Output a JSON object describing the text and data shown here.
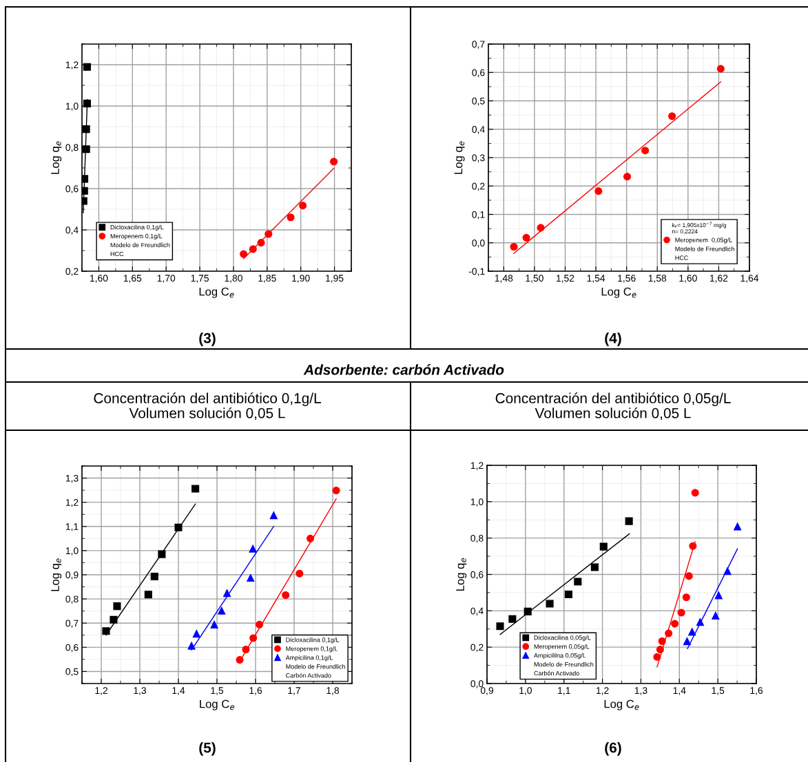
{
  "chart_data": [
    {
      "type": "scatter",
      "xlabel": "Log C$_{e}$",
      "ylabel": "Log q$_{e}$",
      "xlim": [
        1.575,
        1.975
      ],
      "ylim": [
        0.2,
        1.3
      ],
      "xticks": [
        {
          "value": 1.6,
          "label": "1,60"
        },
        {
          "value": 1.65,
          "label": "1,65"
        },
        {
          "value": 1.7,
          "label": "1,70"
        },
        {
          "value": 1.75,
          "label": "1,75"
        },
        {
          "value": 1.8,
          "label": "1,80"
        },
        {
          "value": 1.85,
          "label": "1,85"
        },
        {
          "value": 1.9,
          "label": "1,90"
        },
        {
          "value": 1.95,
          "label": "1,95"
        }
      ],
      "yticks": [
        {
          "value": 0.2,
          "label": "0,2"
        },
        {
          "value": 0.4,
          "label": "0,4"
        },
        {
          "value": 0.6,
          "label": "0,6"
        },
        {
          "value": 0.8,
          "label": "0,8"
        },
        {
          "value": 1.0,
          "label": "1,0"
        },
        {
          "value": 1.2,
          "label": "1,2"
        }
      ],
      "grid": true,
      "legend": "lower left",
      "series": [
        {
          "name": "Dicloxacilina 0,1g/L",
          "color": "#000000",
          "marker": "square",
          "x": [
            1.5773,
            1.5783,
            1.5786,
            1.5813,
            1.5813,
            1.5826,
            1.5826
          ],
          "values": [
            0.54,
            0.589,
            0.647,
            0.791,
            0.888,
            1.012,
            1.189
          ]
        },
        {
          "type": "line",
          "color": "#000000",
          "x": [
            1.5769,
            1.583
          ],
          "values": [
            0.483,
            1.031
          ]
        },
        {
          "name": "Meropenem 0,1g/L",
          "color": "#ff0000",
          "marker": "circle",
          "x": [
            1.815,
            1.829,
            1.841,
            1.852,
            1.885,
            1.903,
            1.949
          ],
          "values": [
            0.283,
            0.307,
            0.338,
            0.38,
            0.461,
            0.518,
            0.731
          ]
        },
        {
          "type": "line",
          "color": "#ff0000",
          "x": [
            1.815,
            1.949
          ],
          "values": [
            0.261,
            0.698
          ]
        }
      ],
      "annotations": [
        "(3)",
        "Modelo de Freundlich",
        "HCC"
      ]
    },
    {
      "type": "scatter",
      "xlabel": "Log C$_{e}$",
      "ylabel": "Log q$_{e}$",
      "xlim": [
        1.47,
        1.64
      ],
      "ylim": [
        -0.1,
        0.7
      ],
      "xticks": [
        {
          "value": 1.48,
          "label": "1,48"
        },
        {
          "value": 1.5,
          "label": "1,50"
        },
        {
          "value": 1.52,
          "label": "1,52"
        },
        {
          "value": 1.54,
          "label": "1,54"
        },
        {
          "value": 1.56,
          "label": "1,56"
        },
        {
          "value": 1.58,
          "label": "1,58"
        },
        {
          "value": 1.6,
          "label": "1,60"
        },
        {
          "value": 1.62,
          "label": "1,62"
        },
        {
          "value": 1.64,
          "label": "1,64"
        }
      ],
      "yticks": [
        {
          "value": -0.1,
          "label": "-0,1"
        },
        {
          "value": 0.0,
          "label": "0,0"
        },
        {
          "value": 0.1,
          "label": "0,1"
        },
        {
          "value": 0.2,
          "label": "0,2"
        },
        {
          "value": 0.3,
          "label": "0,3"
        },
        {
          "value": 0.4,
          "label": "0,4"
        },
        {
          "value": 0.5,
          "label": "0,5"
        },
        {
          "value": 0.6,
          "label": "0,6"
        },
        {
          "value": 0.7,
          "label": "0,7"
        }
      ],
      "grid": true,
      "legend": "lower right",
      "legend_title": "k$_{F}$= 1,905x10$^{−7}$ mg/g\nn= 0,2224",
      "series": [
        {
          "name": "Meropenem  0,05g/L",
          "color": "#ff0000",
          "marker": "circle",
          "x": [
            1.4866,
            1.4947,
            1.5041,
            1.5417,
            1.5604,
            1.5721,
            1.5896,
            1.6213
          ],
          "values": [
            -0.014,
            0.018,
            0.053,
            0.182,
            0.233,
            0.325,
            0.446,
            0.613
          ]
        },
        {
          "type": "line",
          "color": "#ff0000",
          "x": [
            1.4866,
            1.6213
          ],
          "values": [
            -0.037,
            0.567
          ]
        }
      ],
      "annotations": [
        "(4)",
        "Modelo de Freundlich",
        "HCC"
      ]
    },
    {
      "type": "scatter",
      "title": "Adsorbente: carbón Activado",
      "subtitle": "Concentración del antibiótico 0,1g/L\nVolumen solución 0,05 L",
      "xlabel": "Log C$_{e}$",
      "ylabel": "Log q$_{e}$",
      "xlim": [
        1.15,
        1.85
      ],
      "ylim": [
        0.45,
        1.35
      ],
      "xticks": [
        {
          "value": 1.2,
          "label": "1,2"
        },
        {
          "value": 1.3,
          "label": "1,3"
        },
        {
          "value": 1.4,
          "label": "1,4"
        },
        {
          "value": 1.5,
          "label": "1,5"
        },
        {
          "value": 1.6,
          "label": "1,6"
        },
        {
          "value": 1.7,
          "label": "1,7"
        },
        {
          "value": 1.8,
          "label": "1,8"
        }
      ],
      "yticks": [
        {
          "value": 0.5,
          "label": "0,5"
        },
        {
          "value": 0.6,
          "label": "0,6"
        },
        {
          "value": 0.7,
          "label": "0,7"
        },
        {
          "value": 0.8,
          "label": "0,8"
        },
        {
          "value": 0.9,
          "label": "0,9"
        },
        {
          "value": 1.0,
          "label": "1,0"
        },
        {
          "value": 1.1,
          "label": "1,1"
        },
        {
          "value": 1.2,
          "label": "1,2"
        },
        {
          "value": 1.3,
          "label": "1,3"
        }
      ],
      "grid": true,
      "legend": "lower right",
      "series": [
        {
          "name": "Dicloxacilina 0,1g/L",
          "color": "#000000",
          "marker": "square",
          "x": [
            1.2125,
            1.232,
            1.241,
            1.322,
            1.338,
            1.357,
            1.4,
            1.444
          ],
          "values": [
            0.667,
            0.714,
            0.77,
            0.818,
            0.893,
            0.985,
            1.096,
            1.256
          ]
        },
        {
          "type": "line",
          "color": "#000000",
          "x": [
            1.2125,
            1.444
          ],
          "values": [
            0.651,
            1.193
          ]
        },
        {
          "name": "Meropenem 0,1g/L",
          "color": "#ff0000",
          "marker": "circle",
          "x": [
            1.559,
            1.575,
            1.594,
            1.61,
            1.678,
            1.714,
            1.742,
            1.809
          ],
          "values": [
            0.548,
            0.591,
            0.638,
            0.694,
            0.816,
            0.905,
            1.05,
            1.249
          ]
        },
        {
          "type": "line",
          "color": "#ff0000",
          "x": [
            1.559,
            1.809
          ],
          "values": [
            0.542,
            1.214
          ]
        },
        {
          "name": "Ampicilina 0,1g/L",
          "color": "#0000ff",
          "marker": "triangle",
          "x": [
            1.434,
            1.447,
            1.493,
            1.512,
            1.526,
            1.587,
            1.593,
            1.647
          ],
          "values": [
            0.606,
            0.656,
            0.694,
            0.751,
            0.824,
            0.887,
            1.008,
            1.146
          ]
        },
        {
          "type": "line",
          "color": "#0000ff",
          "x": [
            1.434,
            1.647
          ],
          "values": [
            0.589,
            1.1
          ]
        }
      ],
      "annotations": [
        "(5)",
        "Modelo de Freundlich",
        "Carbón Activado"
      ]
    },
    {
      "type": "scatter",
      "subtitle": "Concentración del antibiótico 0,05g/L\nVolumen solución 0,05 L",
      "xlabel": "Log C$_{e}$",
      "ylabel": "Log q$_{e}$",
      "xlim": [
        0.9,
        1.6
      ],
      "ylim": [
        0.0,
        1.2
      ],
      "xticks": [
        {
          "value": 0.9,
          "label": "0,9"
        },
        {
          "value": 1.0,
          "label": "1,0"
        },
        {
          "value": 1.1,
          "label": "1,1"
        },
        {
          "value": 1.2,
          "label": "1,2"
        },
        {
          "value": 1.3,
          "label": "1,3"
        },
        {
          "value": 1.4,
          "label": "1,4"
        },
        {
          "value": 1.5,
          "label": "1,5"
        },
        {
          "value": 1.6,
          "label": "1,6"
        }
      ],
      "yticks": [
        {
          "value": 0.0,
          "label": "0,0"
        },
        {
          "value": 0.2,
          "label": "0,2"
        },
        {
          "value": 0.4,
          "label": "0,4"
        },
        {
          "value": 0.6,
          "label": "0,6"
        },
        {
          "value": 0.8,
          "label": "0,8"
        },
        {
          "value": 1.0,
          "label": "1,0"
        },
        {
          "value": 1.2,
          "label": "1,2"
        }
      ],
      "grid": true,
      "legend": "lower left",
      "series": [
        {
          "name": "Dicloxacilina 0,05g/L",
          "color": "#000000",
          "marker": "square",
          "x": [
            0.934,
            0.966,
            1.006,
            1.063,
            1.112,
            1.136,
            1.18,
            1.203,
            1.269
          ],
          "values": [
            0.315,
            0.355,
            0.396,
            0.439,
            0.49,
            0.56,
            0.64,
            0.753,
            0.893
          ]
        },
        {
          "type": "line",
          "color": "#000000",
          "x": [
            0.934,
            1.27
          ],
          "values": [
            0.27,
            0.823
          ]
        },
        {
          "name": "Meropenem 0,05g/L",
          "color": "#ff0000",
          "marker": "circle",
          "x": [
            1.342,
            1.35,
            1.355,
            1.372,
            1.388,
            1.405,
            1.418,
            1.425,
            1.435,
            1.441
          ],
          "values": [
            0.146,
            0.187,
            0.233,
            0.276,
            0.329,
            0.39,
            0.474,
            0.591,
            0.756,
            1.049
          ]
        },
        {
          "type": "line",
          "color": "#ff0000",
          "x": [
            1.342,
            1.441
          ],
          "values": [
            0.091,
            0.78
          ]
        },
        {
          "name": "Ampicililna 0,05g/L",
          "color": "#0000ff",
          "marker": "triangle",
          "x": [
            1.42,
            1.433,
            1.454,
            1.494,
            1.502,
            1.525,
            1.551
          ],
          "values": [
            0.232,
            0.284,
            0.338,
            0.373,
            0.485,
            0.618,
            0.863
          ]
        },
        {
          "type": "line",
          "color": "#0000ff",
          "x": [
            1.421,
            1.551
          ],
          "values": [
            0.192,
            0.741
          ]
        }
      ],
      "annotations": [
        "(6)",
        "Modelo de Freundlich",
        "Carbón Activado"
      ]
    }
  ]
}
